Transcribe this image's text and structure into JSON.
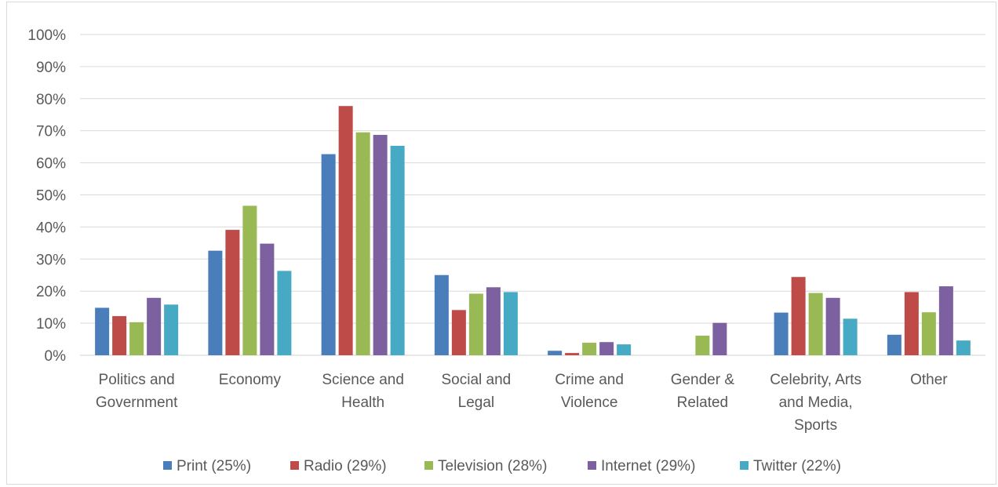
{
  "chart_data": {
    "type": "bar",
    "categories": [
      [
        "Politics and",
        "Government"
      ],
      [
        "Economy"
      ],
      [
        "Science and",
        "Health"
      ],
      [
        "Social and",
        "Legal"
      ],
      [
        "Crime and",
        "Violence"
      ],
      [
        "Gender &",
        "Related"
      ],
      [
        "Celebrity, Arts",
        "and Media,",
        "Sports"
      ],
      [
        "Other"
      ]
    ],
    "series": [
      {
        "name": "Print (25%)",
        "color": "#4a7ebb",
        "values": [
          14.8,
          32.6,
          62.7,
          25.0,
          1.4,
          0,
          13.3,
          6.4
        ]
      },
      {
        "name": "Radio (29%)",
        "color": "#be4b48",
        "values": [
          12.2,
          39.1,
          77.7,
          14.1,
          0.7,
          0,
          24.4,
          19.7
        ]
      },
      {
        "name": "Television (28%)",
        "color": "#98b954",
        "values": [
          10.3,
          46.6,
          69.5,
          19.2,
          3.9,
          6.1,
          19.4,
          13.4
        ]
      },
      {
        "name": "Internet (29%)",
        "color": "#7d60a0",
        "values": [
          17.9,
          34.8,
          68.7,
          21.2,
          4.1,
          10.1,
          17.9,
          21.5
        ]
      },
      {
        "name": "Twitter (22%)",
        "color": "#46aac5",
        "values": [
          15.8,
          26.3,
          65.3,
          19.7,
          3.4,
          0,
          11.4,
          4.6
        ]
      }
    ],
    "yticks": [
      "0%",
      "10%",
      "20%",
      "30%",
      "40%",
      "50%",
      "60%",
      "70%",
      "80%",
      "90%",
      "100%"
    ],
    "ylim": [
      0,
      100
    ],
    "grid": true,
    "legend_position": "bottom",
    "title": "",
    "xlabel": "",
    "ylabel": ""
  }
}
